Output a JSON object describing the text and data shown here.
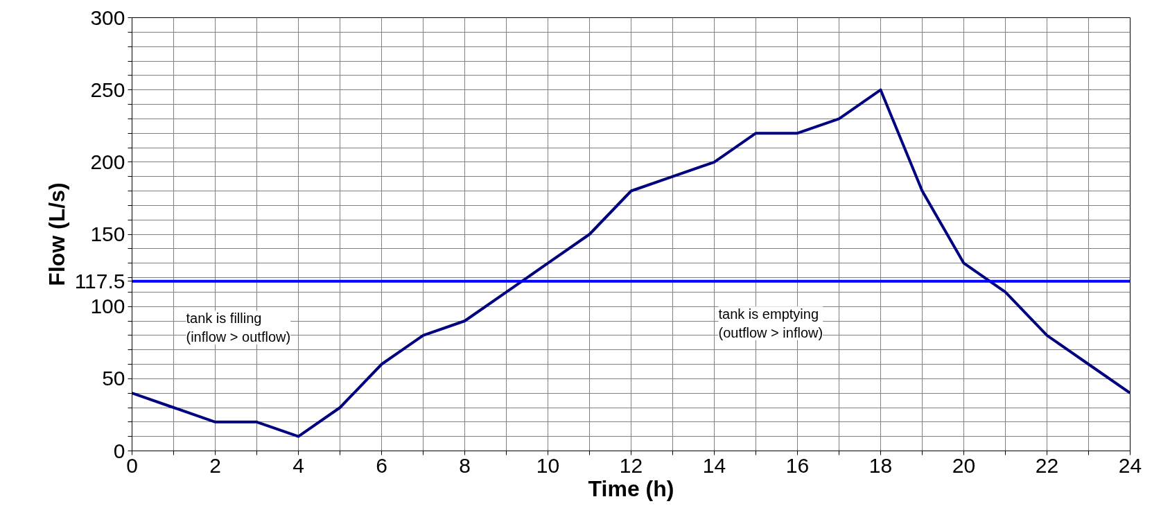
{
  "chart_data": {
    "type": "line",
    "xlabel": "Time (h)",
    "ylabel": "Flow (L/s)",
    "x": [
      0,
      1,
      2,
      3,
      4,
      5,
      6,
      7,
      8,
      9,
      10,
      11,
      12,
      13,
      14,
      15,
      16,
      17,
      18,
      19,
      20,
      21,
      22,
      23,
      24
    ],
    "series": [
      {
        "color": "#000080",
        "values": [
          40,
          30,
          20,
          20,
          10,
          30,
          60,
          80,
          90,
          110,
          130,
          150,
          180,
          190,
          200,
          220,
          220,
          230,
          250,
          180,
          130,
          110,
          80,
          60,
          40
        ]
      }
    ],
    "xlim": [
      0,
      24
    ],
    "ylim": [
      0,
      300
    ],
    "xticks": [
      0,
      {
        "value": 1,
        "label": null
      },
      2,
      {
        "value": 3,
        "label": null
      },
      4,
      {
        "value": 5,
        "label": null
      },
      6,
      {
        "value": 7,
        "label": null
      },
      8,
      {
        "value": 9,
        "label": null
      },
      10,
      {
        "value": 11,
        "label": null
      },
      12,
      {
        "value": 13,
        "label": null
      },
      14,
      {
        "value": 15,
        "label": null
      },
      16,
      {
        "value": 17,
        "label": null
      },
      18,
      {
        "value": 19,
        "label": null
      },
      20,
      {
        "value": 21,
        "label": null
      },
      22,
      {
        "value": 23,
        "label": null
      },
      24
    ],
    "yticks": [
      0,
      {
        "value": 10,
        "label": null
      },
      {
        "value": 20,
        "label": null
      },
      {
        "value": 30,
        "label": null
      },
      {
        "value": 40,
        "label": null
      },
      50,
      {
        "value": 60,
        "label": null
      },
      {
        "value": 70,
        "label": null
      },
      {
        "value": 80,
        "label": null
      },
      {
        "value": 90,
        "label": null
      },
      100,
      {
        "value": 110,
        "label": null
      },
      117.5,
      {
        "value": 120,
        "label": null
      },
      {
        "value": 130,
        "label": null
      },
      {
        "value": 140,
        "label": null
      },
      150,
      {
        "value": 160,
        "label": null
      },
      {
        "value": 170,
        "label": null
      },
      {
        "value": 180,
        "label": null
      },
      {
        "value": 190,
        "label": null
      },
      200,
      {
        "value": 210,
        "label": null
      },
      {
        "value": 220,
        "label": null
      },
      {
        "value": 230,
        "label": null
      },
      {
        "value": 240,
        "label": null
      },
      250,
      {
        "value": 260,
        "label": null
      },
      {
        "value": 270,
        "label": null
      },
      {
        "value": 280,
        "label": null
      },
      {
        "value": 290,
        "label": null
      },
      300
    ],
    "ref_lines": [
      {
        "axis": "y",
        "value": 117.5,
        "color": "#0000ff"
      }
    ],
    "annotations": [
      "tank is filling\n(inflow > outflow)",
      "tank is emptying\n(outflow > inflow)"
    ],
    "grid": true,
    "line_style": "solid",
    "marker": "none"
  }
}
